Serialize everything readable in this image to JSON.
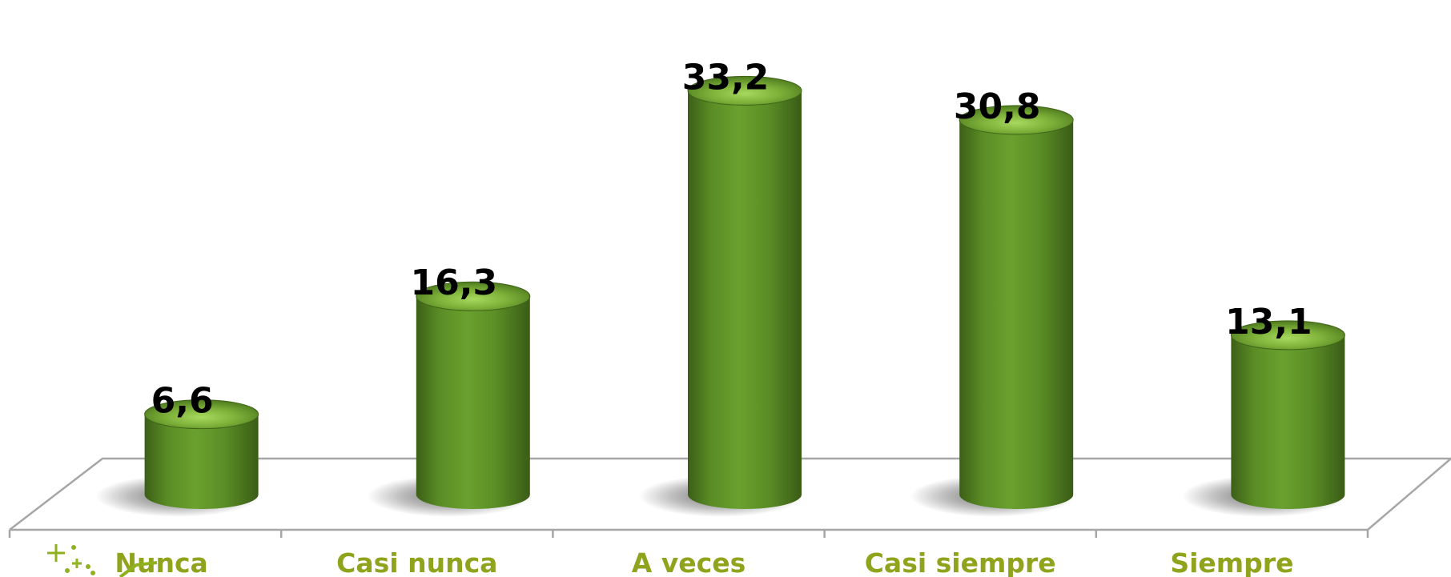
{
  "chart_data": {
    "type": "bar",
    "style": "3d-cylinder",
    "categories": [
      "Nunca",
      "Casi nunca",
      "A veces",
      "Casi siempre",
      "Siempre"
    ],
    "values": [
      6.6,
      16.3,
      33.2,
      30.8,
      13.1
    ],
    "value_labels": [
      "6,6",
      "16,3",
      "33,2",
      "30,8",
      "13,1"
    ],
    "title": "",
    "xlabel": "",
    "ylabel": "",
    "ylim": [
      0,
      34
    ],
    "grid": false,
    "legend": "none",
    "colors": {
      "bar_dark": "#3f6418",
      "bar_mid": "#5e9127",
      "bar_light": "#79b03a",
      "top_light": "#9cd053",
      "category_text": "#8fa31c",
      "value_text": "#000000",
      "floor_line": "#a6a6a6"
    }
  },
  "decorations": {
    "logo_icon": "sparkle-plus-icon"
  }
}
